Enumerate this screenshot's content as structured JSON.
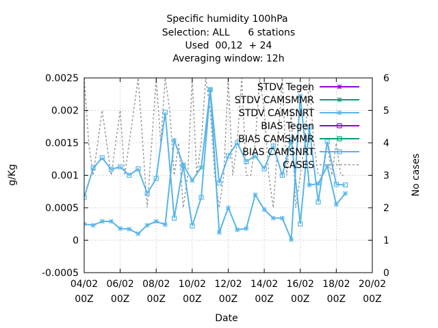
{
  "chart_data": {
    "type": "line",
    "title_lines": [
      "Specific humidity 100hPa",
      "Selection: ALL      6 stations",
      "Used  00,12  + 24",
      "Averaging window: 12h"
    ],
    "xlabel": "Date",
    "ylabel": "g/Kg",
    "y2label": "No cases",
    "xlim": [
      0,
      16
    ],
    "ylim": [
      -0.0005,
      0.0025
    ],
    "y2lim": [
      0,
      6
    ],
    "x_unit": "days since 04/02 00Z",
    "x_ticks": [
      {
        "x": 0,
        "label1": "04/02",
        "label2": "00Z"
      },
      {
        "x": 2,
        "label1": "06/02",
        "label2": "00Z"
      },
      {
        "x": 4,
        "label1": "08/02",
        "label2": "00Z"
      },
      {
        "x": 6,
        "label1": "10/02",
        "label2": "00Z"
      },
      {
        "x": 8,
        "label1": "12/02",
        "label2": "00Z"
      },
      {
        "x": 10,
        "label1": "14/02",
        "label2": "00Z"
      },
      {
        "x": 12,
        "label1": "16/02",
        "label2": "00Z"
      },
      {
        "x": 14,
        "label1": "18/02",
        "label2": "00Z"
      },
      {
        "x": 16,
        "label1": "20/02",
        "label2": "00Z"
      }
    ],
    "y_ticks": [
      {
        "v": -0.0005,
        "label": "-0.0005"
      },
      {
        "v": 0,
        "label": "0"
      },
      {
        "v": 0.0005,
        "label": "0.0005"
      },
      {
        "v": 0.001,
        "label": "0.001"
      },
      {
        "v": 0.0015,
        "label": "0.0015"
      },
      {
        "v": 0.002,
        "label": "0.002"
      },
      {
        "v": 0.0025,
        "label": "0.0025"
      }
    ],
    "y2_ticks": [
      {
        "v": 0,
        "label": "0"
      },
      {
        "v": 1,
        "label": "1"
      },
      {
        "v": 2,
        "label": "2"
      },
      {
        "v": 3,
        "label": "3"
      },
      {
        "v": 4,
        "label": "4"
      },
      {
        "v": 5,
        "label": "5"
      },
      {
        "v": 6,
        "label": "6"
      }
    ],
    "legend_position": "top-right",
    "grid": true,
    "series": [
      {
        "name": "STDV Tegen",
        "color": "#9400d3",
        "marker": "x",
        "axis": "y1",
        "x": [],
        "values": []
      },
      {
        "name": "STDV CAMSMMR",
        "color": "#009e73",
        "marker": "x",
        "axis": "y1",
        "x": [],
        "values": []
      },
      {
        "name": "STDV CAMSNRT",
        "color": "#56b4e9",
        "marker": "x",
        "axis": "y1",
        "x": [
          0,
          0.5,
          1,
          1.5,
          2,
          2.5,
          3,
          3.5,
          4,
          4.5,
          5,
          5.5,
          6,
          6.5,
          7,
          7.5,
          8,
          8.5,
          9,
          9.5,
          10,
          10.5,
          11,
          11.5,
          12,
          12.5,
          13,
          13.5,
          14,
          14.5
        ],
        "values": [
          0.00025,
          0.00023,
          0.00029,
          0.00029,
          0.00018,
          0.00017,
          0.0001,
          0.00023,
          0.00029,
          0.00024,
          0.00154,
          0.00116,
          0.00092,
          0.00112,
          0.00232,
          0.00012,
          0.0005,
          0.00016,
          0.00018,
          0.0007,
          0.00047,
          0.00034,
          0.00034,
          1e-05,
          0.00222,
          0.00085,
          0.00087,
          0.00114,
          0.00055,
          0.00072
        ]
      },
      {
        "name": "BIAS Tegen",
        "color": "#9400d3",
        "marker": "square",
        "axis": "y1",
        "x": [],
        "values": []
      },
      {
        "name": "BIAS CAMSMMR",
        "color": "#009e73",
        "marker": "square",
        "axis": "y1",
        "x": [],
        "values": []
      },
      {
        "name": "BIAS CAMSNRT",
        "color": "#56b4e9",
        "marker": "square",
        "axis": "y1",
        "x": [
          0,
          0.5,
          1,
          1.5,
          2,
          2.5,
          3,
          3.5,
          4,
          4.5,
          5,
          5.5,
          6,
          6.5,
          7,
          7.5,
          8,
          8.5,
          9,
          9.5,
          10,
          10.5,
          11,
          11.5,
          12,
          12.5,
          13,
          13.5,
          14,
          14.5
        ],
        "values": [
          0.00066,
          0.00111,
          0.00127,
          0.00109,
          0.00113,
          0.001,
          0.0011,
          0.00072,
          0.00095,
          0.00197,
          0.00034,
          0.00115,
          0.00022,
          0.00066,
          0.00232,
          0.00088,
          0.0013,
          0.0015,
          0.00121,
          0.0013,
          0.0011,
          0.00145,
          0.001,
          0.00155,
          0.00025,
          0.00174,
          0.00059,
          0.00152,
          0.00086,
          0.00085
        ]
      },
      {
        "name": "CASES",
        "color": "#999999",
        "marker": "none",
        "dashed": true,
        "axis": "y2",
        "x": [
          0,
          0.25,
          0.5,
          0.75,
          1,
          1.25,
          1.5,
          1.75,
          2,
          2.25,
          2.5,
          2.75,
          3,
          3.25,
          3.5,
          3.75,
          4,
          4.25,
          4.5,
          4.75,
          5,
          5.25,
          5.5,
          5.75,
          6,
          6.25,
          6.5,
          6.75,
          7,
          7.25,
          7.5,
          7.75,
          8,
          8.25,
          8.5,
          8.75,
          9,
          9.25,
          9.5,
          9.75,
          10,
          10.25,
          10.5,
          10.75,
          11,
          11.25,
          11.5,
          11.75,
          12,
          12.25,
          12.5,
          12.75,
          13,
          13.25,
          13.5,
          13.75,
          14,
          14.25,
          14.5
        ],
        "values": [
          6,
          4,
          3,
          4,
          5,
          4,
          3,
          4,
          5,
          3,
          4,
          5,
          6,
          4,
          2,
          4,
          6,
          4,
          6,
          5,
          3,
          4,
          2,
          3,
          6,
          3,
          4,
          6,
          5,
          3,
          2,
          3,
          6,
          3,
          4,
          6,
          3,
          3,
          4,
          6,
          5,
          3,
          2,
          4,
          6,
          3,
          5,
          2,
          3,
          4,
          6,
          4,
          3,
          3,
          4,
          3,
          4,
          3,
          3
        ]
      }
    ]
  }
}
